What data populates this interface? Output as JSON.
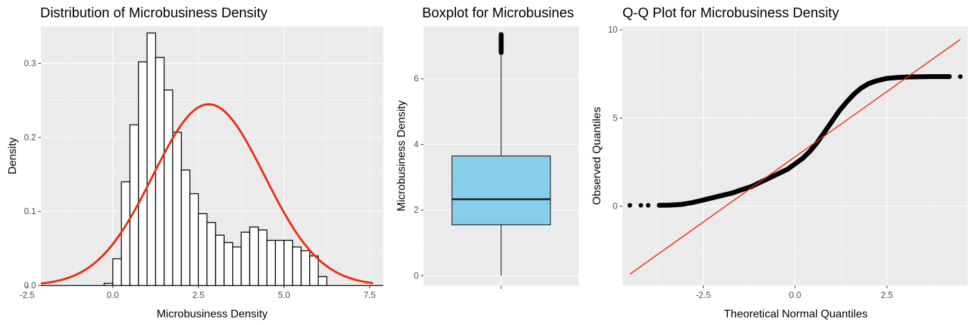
{
  "colors": {
    "panel": "#ebebeb",
    "grid": "#ffffff",
    "hist_fill": "#ffffff",
    "hist_stroke": "#000000",
    "curve": "#f02b0a",
    "box_fill": "#87ceeb",
    "qq_line": "#f02b0a",
    "points": "#000000"
  },
  "chart_data": [
    {
      "type": "bar",
      "title": "Distribution of Microbusiness Density",
      "xlabel": "Microbusiness Density",
      "ylabel": "Density",
      "xlim": [
        -2.1,
        7.9
      ],
      "ylim": [
        0,
        0.35
      ],
      "x_ticks": [
        -2.5,
        0.0,
        2.5,
        5.0,
        7.5
      ],
      "x_tick_labels": [
        "-2.5",
        "0.0",
        "2.5",
        "5.0",
        "7.5"
      ],
      "y_ticks": [
        0.0,
        0.1,
        0.2,
        0.3
      ],
      "y_tick_labels": [
        "0.0",
        "0.1",
        "0.2",
        "0.3"
      ],
      "bin_width": 0.25,
      "bin_start": -0.25,
      "bin_values": [
        0.003,
        0.036,
        0.14,
        0.217,
        0.302,
        0.341,
        0.308,
        0.264,
        0.207,
        0.156,
        0.124,
        0.097,
        0.085,
        0.068,
        0.058,
        0.052,
        0.072,
        0.079,
        0.075,
        0.061,
        0.061,
        0.061,
        0.052,
        0.047,
        0.04,
        0.012
      ],
      "normal_curve": {
        "mean": 2.8,
        "sd": 1.63,
        "x_range": [
          -2.1,
          7.6
        ]
      }
    },
    {
      "type": "box",
      "title": "Boxplot for Microbusines",
      "xlabel": "",
      "ylabel": "Microbusiness Density",
      "ylim": [
        -0.3,
        7.6
      ],
      "y_ticks": [
        0,
        2,
        4,
        6
      ],
      "y_tick_labels": [
        "0",
        "2",
        "4",
        "6"
      ],
      "box": {
        "min": 0.0,
        "q1": 1.55,
        "median": 2.33,
        "q3": 3.65,
        "whisker_high": 6.8,
        "outliers_from": 6.8,
        "outliers_to": 7.35
      }
    },
    {
      "type": "scatter",
      "title": "Q-Q Plot for Microbusiness Density",
      "xlabel": "Theoretical Normal Quantiles",
      "ylabel": "Observed Quantiles",
      "xlim": [
        -4.7,
        4.7
      ],
      "ylim": [
        -4.5,
        10.2
      ],
      "x_ticks": [
        -2.5,
        0.0,
        2.5
      ],
      "x_tick_labels": [
        "-2.5",
        "0.0",
        "2.5"
      ],
      "y_ticks": [
        0,
        5,
        10
      ],
      "y_tick_labels": [
        "0",
        "5",
        "10"
      ],
      "points": [
        [
          -4.5,
          0.05
        ],
        [
          -4.2,
          0.05
        ],
        [
          -4.0,
          0.05
        ],
        [
          -3.7,
          0.05
        ],
        [
          -3.4,
          0.06
        ],
        [
          -3.1,
          0.1
        ],
        [
          -2.8,
          0.2
        ],
        [
          -2.5,
          0.35
        ],
        [
          -2.2,
          0.5
        ],
        [
          -2.0,
          0.6
        ],
        [
          -1.7,
          0.75
        ],
        [
          -1.5,
          0.9
        ],
        [
          -1.2,
          1.1
        ],
        [
          -1.0,
          1.3
        ],
        [
          -0.8,
          1.5
        ],
        [
          -0.6,
          1.7
        ],
        [
          -0.4,
          1.9
        ],
        [
          -0.2,
          2.1
        ],
        [
          0.0,
          2.4
        ],
        [
          0.2,
          2.7
        ],
        [
          0.4,
          3.1
        ],
        [
          0.6,
          3.6
        ],
        [
          0.8,
          4.2
        ],
        [
          1.0,
          4.8
        ],
        [
          1.2,
          5.4
        ],
        [
          1.4,
          5.9
        ],
        [
          1.6,
          6.35
        ],
        [
          1.8,
          6.7
        ],
        [
          2.0,
          6.95
        ],
        [
          2.2,
          7.1
        ],
        [
          2.5,
          7.25
        ],
        [
          2.8,
          7.3
        ],
        [
          3.1,
          7.33
        ],
        [
          3.4,
          7.34
        ],
        [
          3.7,
          7.35
        ],
        [
          4.0,
          7.35
        ],
        [
          4.2,
          7.35
        ],
        [
          4.5,
          7.35
        ]
      ],
      "reference_line": {
        "intercept": 2.8,
        "slope": 1.48
      }
    }
  ]
}
